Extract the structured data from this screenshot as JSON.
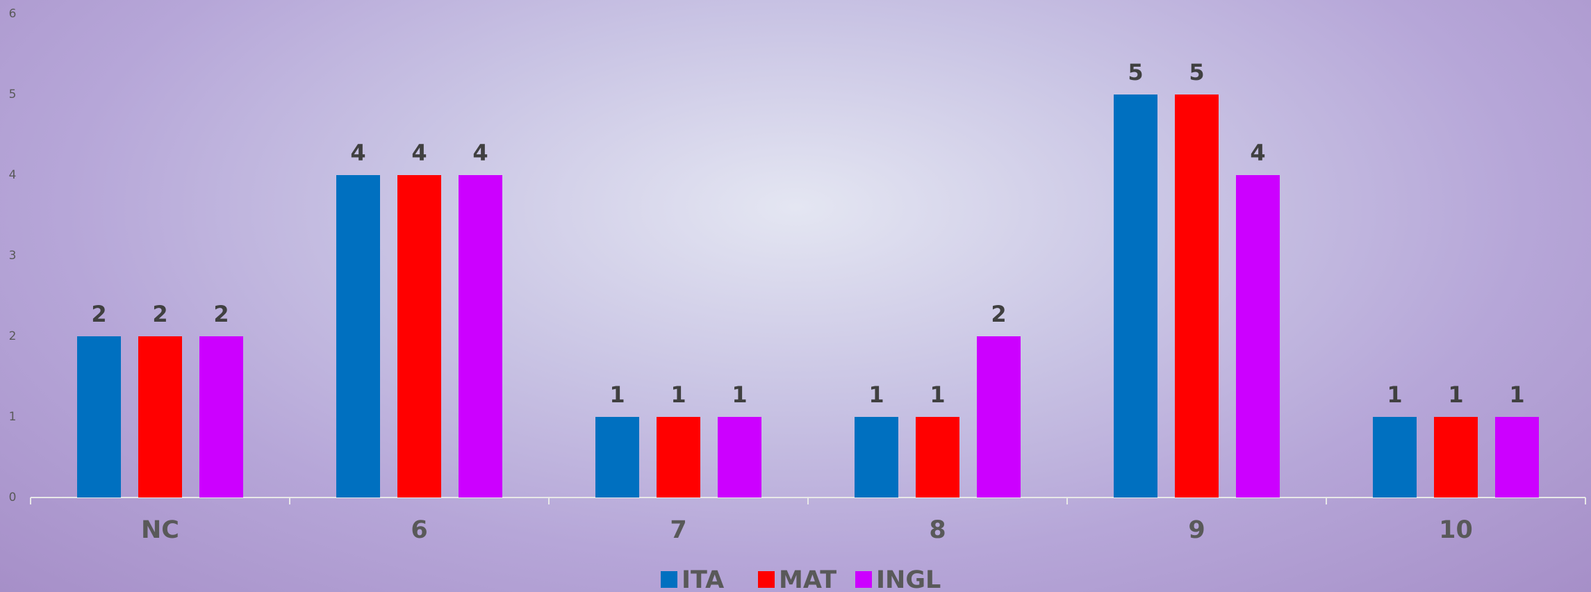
{
  "chart_data": {
    "type": "bar",
    "categories": [
      "NC",
      "6",
      "7",
      "8",
      "9",
      "10"
    ],
    "series": [
      {
        "name": "ITA",
        "color": "#0070c0",
        "values": [
          2,
          4,
          1,
          1,
          5,
          1
        ]
      },
      {
        "name": "MAT",
        "color": "#ff0000",
        "values": [
          2,
          4,
          1,
          1,
          5,
          1
        ]
      },
      {
        "name": "INGL",
        "color": "#cc00ff",
        "values": [
          2,
          4,
          1,
          2,
          4,
          1
        ]
      }
    ],
    "ylim": [
      0,
      6
    ],
    "yticks": [
      0,
      1,
      2,
      3,
      4,
      5,
      6
    ],
    "grid": false,
    "legend": "bottom"
  }
}
